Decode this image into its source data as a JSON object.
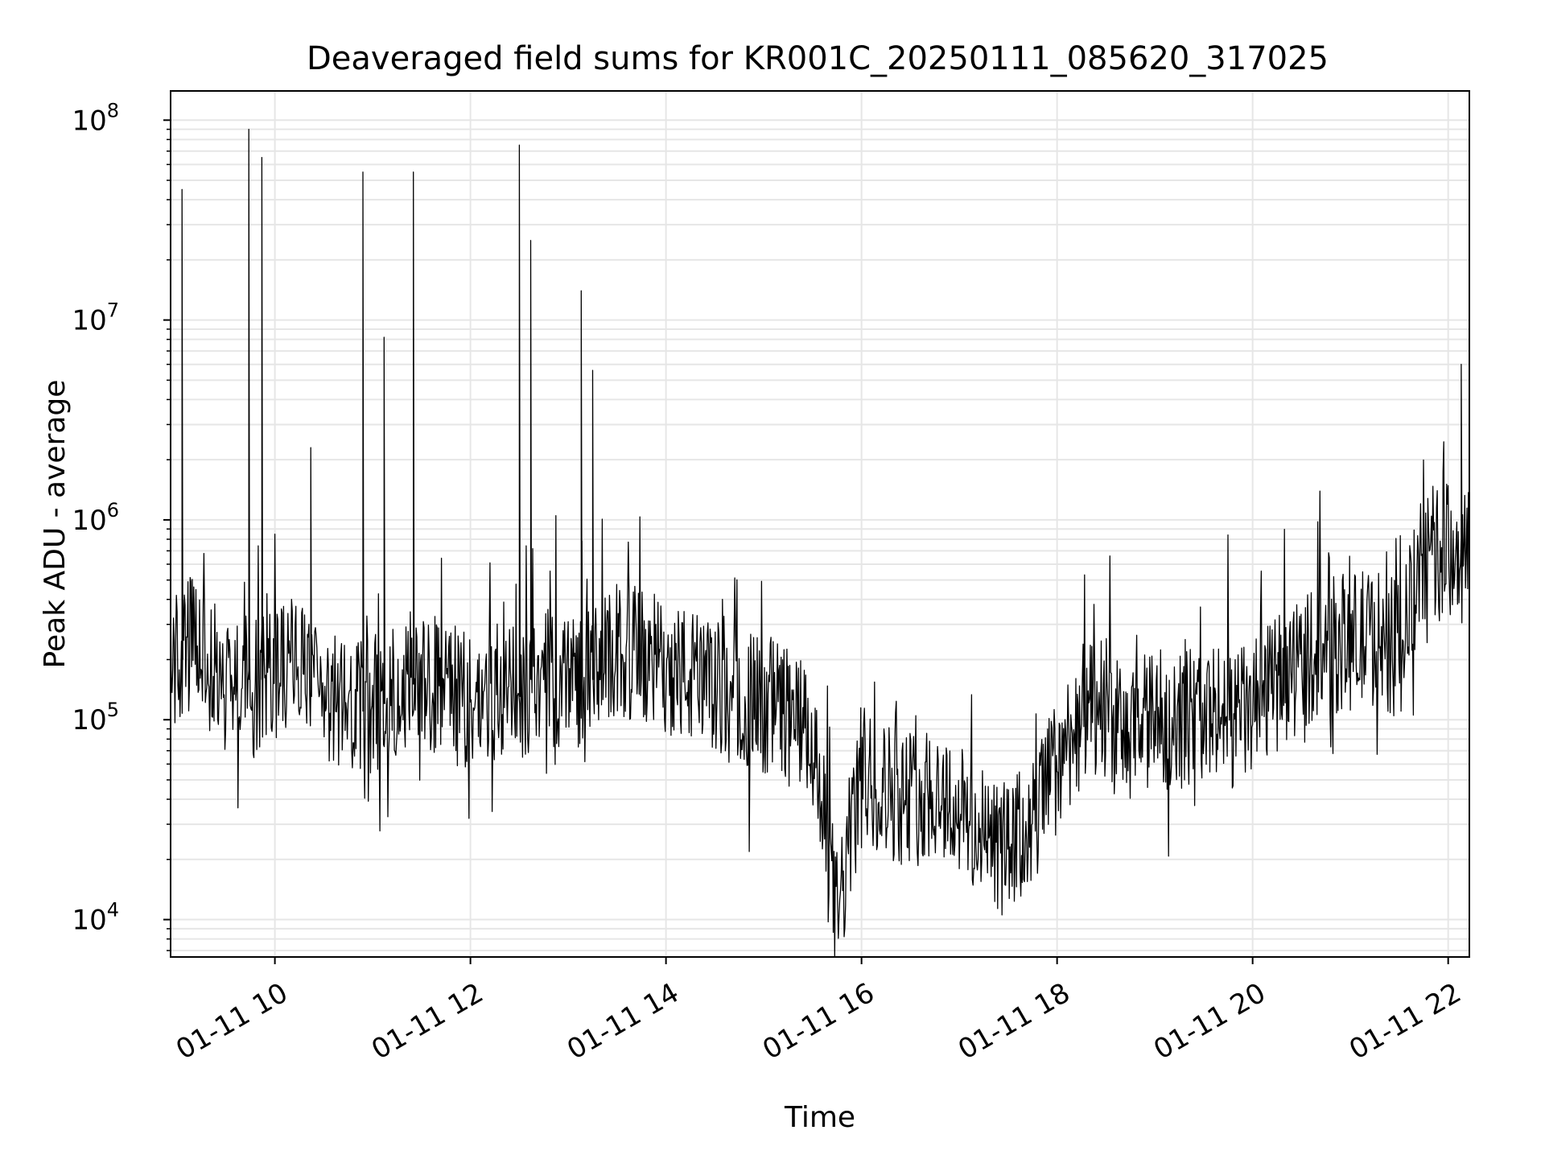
{
  "chart_data": {
    "type": "line",
    "title": "Deaveraged field sums for KR001C_20250111_085620_317025",
    "xlabel": "Time",
    "ylabel": "Peak ADU - average",
    "x_scale": "time",
    "y_scale": "log",
    "xlim": [
      "2025-01-11T08:56",
      "2025-01-11T22:13"
    ],
    "ylim": [
      6500,
      140000000
    ],
    "x_ticks": [
      "01-11 10",
      "01-11 12",
      "01-11 14",
      "01-11 16",
      "01-11 18",
      "01-11 20",
      "01-11 22"
    ],
    "x_tick_times": [
      "2025-01-11T10:00",
      "2025-01-11T12:00",
      "2025-01-11T14:00",
      "2025-01-11T16:00",
      "2025-01-11T18:00",
      "2025-01-11T20:00",
      "2025-01-11T22:00"
    ],
    "y_ticks": [
      {
        "base": "10",
        "exp": "4",
        "value": 10000
      },
      {
        "base": "10",
        "exp": "5",
        "value": 100000
      },
      {
        "base": "10",
        "exp": "6",
        "value": 1000000
      },
      {
        "base": "10",
        "exp": "7",
        "value": 10000000
      },
      {
        "base": "10",
        "exp": "8",
        "value": 100000000
      }
    ],
    "grid": true,
    "line_color": "#000000",
    "grid_color": "#e6e6e6",
    "series": [
      {
        "x": [
          "2025-01-11T08:56",
          "2025-01-11T09:03",
          "2025-01-11T09:10",
          "2025-01-11T09:20",
          "2025-01-11T09:30",
          "2025-01-11T09:37",
          "2025-01-11T09:44",
          "2025-01-11T09:52",
          "2025-01-11T10:00",
          "2025-01-11T10:15",
          "2025-01-11T10:22",
          "2025-01-11T10:30",
          "2025-01-11T10:45",
          "2025-01-11T10:54",
          "2025-01-11T11:00",
          "2025-01-11T11:07",
          "2025-01-11T11:15",
          "2025-01-11T11:25",
          "2025-01-11T11:30",
          "2025-01-11T11:45",
          "2025-01-11T12:00",
          "2025-01-11T12:15",
          "2025-01-11T12:30",
          "2025-01-11T12:37",
          "2025-01-11T12:45",
          "2025-01-11T12:54",
          "2025-01-11T13:00",
          "2025-01-11T13:08",
          "2025-01-11T13:15",
          "2025-01-11T13:30",
          "2025-01-11T13:45",
          "2025-01-11T14:00",
          "2025-01-11T14:15",
          "2025-01-11T14:30",
          "2025-01-11T14:45",
          "2025-01-11T15:00",
          "2025-01-11T15:15",
          "2025-01-11T15:30",
          "2025-01-11T15:45",
          "2025-01-11T16:00",
          "2025-01-11T16:15",
          "2025-01-11T16:30",
          "2025-01-11T16:45",
          "2025-01-11T17:00",
          "2025-01-11T17:15",
          "2025-01-11T17:30",
          "2025-01-11T17:45",
          "2025-01-11T18:00",
          "2025-01-11T18:15",
          "2025-01-11T18:30",
          "2025-01-11T18:45",
          "2025-01-11T19:00",
          "2025-01-11T19:15",
          "2025-01-11T19:30",
          "2025-01-11T19:45",
          "2025-01-11T20:00",
          "2025-01-11T20:15",
          "2025-01-11T20:30",
          "2025-01-11T20:45",
          "2025-01-11T21:00",
          "2025-01-11T21:15",
          "2025-01-11T21:30",
          "2025-01-11T21:45",
          "2025-01-11T22:00",
          "2025-01-11T22:08",
          "2025-01-11T22:13"
        ],
        "y": [
          200000,
          45000000,
          250000,
          180000,
          150000,
          160000,
          90000000,
          65000000,
          180000,
          200000,
          2300000,
          130000,
          110000,
          55000000,
          120000,
          8200000,
          150000,
          55000000,
          160000,
          140000,
          120000,
          130000,
          75000000,
          25000000,
          160000,
          150000,
          170000,
          14000000,
          5600000,
          220000,
          200000,
          190000,
          160000,
          140000,
          130000,
          120000,
          110000,
          75000,
          10000,
          55000,
          45000,
          40000,
          45000,
          35000,
          25000,
          22000,
          30000,
          60000,
          110000,
          100000,
          80000,
          100000,
          100000,
          110000,
          100000,
          110000,
          150000,
          200000,
          230000,
          250000,
          260000,
          220000,
          650000,
          700000,
          6000000,
          650000
        ]
      }
    ]
  }
}
